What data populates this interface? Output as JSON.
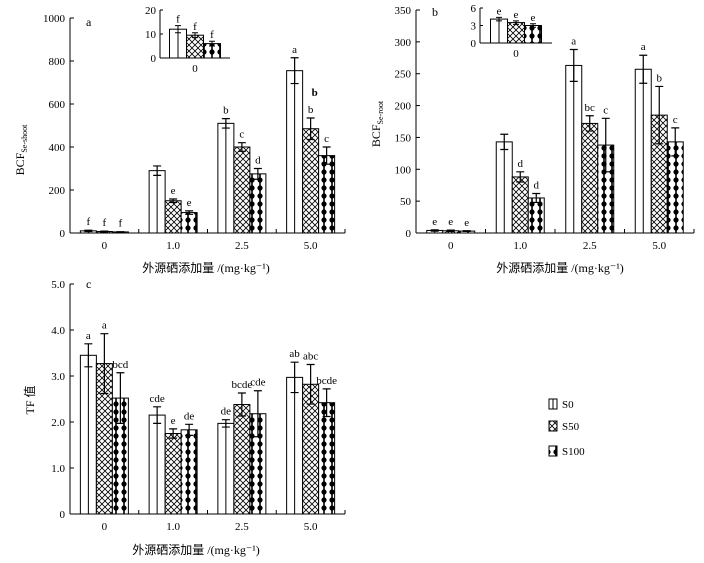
{
  "chart_data": [
    {
      "type": "bar",
      "panel_label": "a",
      "categories": [
        "0",
        "1.0",
        "2.5",
        "5.0"
      ],
      "series": [
        {
          "name": "S0",
          "values": [
            10,
            290,
            510,
            755
          ],
          "errors": [
            3,
            22,
            22,
            60
          ],
          "letters": [
            "f",
            "",
            "b",
            "a"
          ]
        },
        {
          "name": "S50",
          "values": [
            7,
            150,
            400,
            485
          ],
          "errors": [
            2,
            8,
            20,
            50
          ],
          "letters": [
            "f",
            "e",
            "c",
            "b"
          ]
        },
        {
          "name": "S100",
          "values": [
            5,
            95,
            275,
            360
          ],
          "errors": [
            1,
            8,
            25,
            40
          ],
          "letters": [
            "f",
            "e",
            "d",
            "c"
          ]
        }
      ],
      "extra_letters": [
        {
          "category": "5.0",
          "series": "S50",
          "text": "b"
        }
      ],
      "xlabel": "外源硒添加量 /(mg·kg⁻¹)",
      "ylabel_main": "BCF",
      "ylabel_sub": "Se-shoot",
      "ylim": [
        0,
        1000
      ],
      "yticks": [
        "0",
        "200",
        "400",
        "600",
        "800",
        "1000"
      ],
      "inset": {
        "categories": [
          "0"
        ],
        "values": [
          12,
          9.5,
          6
        ],
        "errors": [
          1.5,
          1,
          1
        ],
        "letters": [
          "f",
          "f",
          "f"
        ],
        "ylim": [
          0,
          20
        ],
        "yticks": [
          "0",
          "10",
          "20"
        ]
      }
    },
    {
      "type": "bar",
      "panel_label": "b",
      "categories": [
        "0",
        "1.0",
        "2.5",
        "5.0"
      ],
      "series": [
        {
          "name": "S0",
          "values": [
            4,
            143,
            263,
            257
          ],
          "errors": [
            1,
            12,
            25,
            22
          ],
          "letters": [
            "e",
            "",
            "a",
            "a"
          ]
        },
        {
          "name": "S50",
          "values": [
            3.5,
            88,
            172,
            185
          ],
          "errors": [
            1,
            8,
            12,
            45
          ],
          "letters": [
            "e",
            "d",
            "bc",
            "b"
          ]
        },
        {
          "name": "S100",
          "values": [
            3,
            55,
            138,
            143
          ],
          "errors": [
            0.5,
            7,
            42,
            22
          ],
          "letters": [
            "e",
            "d",
            "c",
            "c"
          ]
        }
      ],
      "xlabel": "外源硒添加量 /(mg·kg⁻¹)",
      "ylabel_main": "BCF",
      "ylabel_sub": "Se-root",
      "ylim": [
        0,
        350
      ],
      "yticks": [
        "0",
        "50",
        "100",
        "150",
        "200",
        "250",
        "300",
        "350"
      ],
      "inset": {
        "categories": [
          "0"
        ],
        "values": [
          4.1,
          3.5,
          3
        ],
        "errors": [
          0.3,
          0.3,
          0.3
        ],
        "letters": [
          "e",
          "e",
          "e"
        ],
        "ylim": [
          0,
          6
        ],
        "yticks": [
          "0",
          "3",
          "6"
        ]
      }
    },
    {
      "type": "bar",
      "panel_label": "c",
      "categories": [
        "0",
        "1.0",
        "2.5",
        "5.0"
      ],
      "series": [
        {
          "name": "S0",
          "values": [
            3.45,
            2.15,
            1.97,
            2.97
          ],
          "errors": [
            0.25,
            0.18,
            0.08,
            0.33
          ],
          "letters": [
            "a",
            "cde",
            "de",
            "ab"
          ]
        },
        {
          "name": "S50",
          "values": [
            3.27,
            1.75,
            2.38,
            2.82
          ],
          "errors": [
            0.65,
            0.1,
            0.25,
            0.43
          ],
          "letters": [
            "a",
            "e",
            "bcde",
            "abc"
          ]
        },
        {
          "name": "S100",
          "values": [
            2.52,
            1.83,
            2.18,
            2.42
          ],
          "errors": [
            0.55,
            0.12,
            0.5,
            0.3
          ],
          "letters": [
            "bcd",
            "de",
            "cde",
            "bcde"
          ]
        }
      ],
      "xlabel": "外源硒添加量 /(mg·kg⁻¹)",
      "ylabel": "TF 值",
      "ylim": [
        0,
        5
      ],
      "yticks": [
        "0",
        "1.0",
        "2.0",
        "3.0",
        "4.0",
        "5.0"
      ]
    }
  ],
  "legend": {
    "items": [
      {
        "label": "S0"
      },
      {
        "label": "S50"
      },
      {
        "label": "S100"
      }
    ]
  }
}
